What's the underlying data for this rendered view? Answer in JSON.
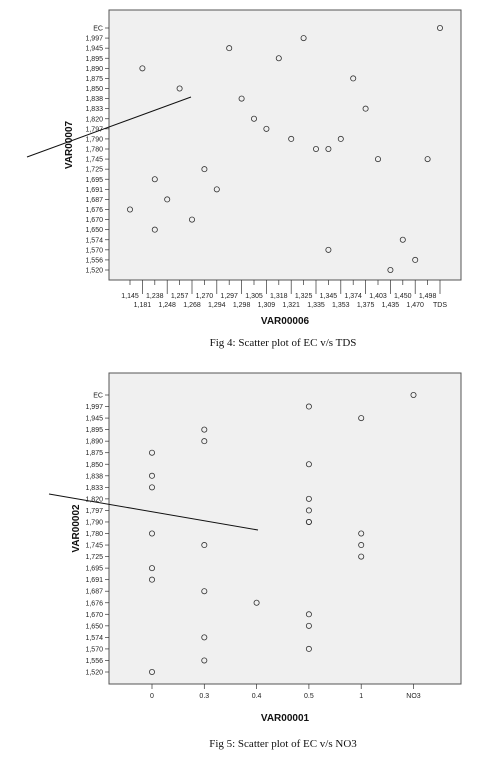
{
  "chart_data": [
    {
      "type": "scatter",
      "title": "",
      "caption": "Fig 4: Scatter plot of EC v/s TDS",
      "xlabel": "VAR00006",
      "ylabel": "VAR00007",
      "x_categories": [
        "1,145",
        "1,181",
        "1,238",
        "1,248",
        "1,257",
        "1,268",
        "1,270",
        "1,294",
        "1,297",
        "1,298",
        "1,305",
        "1,309",
        "1,318",
        "1,321",
        "1,325",
        "1,335",
        "1,345",
        "1,353",
        "1,374",
        "1,375",
        "1,403",
        "1,435",
        "1,450",
        "1,470",
        "1,498",
        "TDS"
      ],
      "y_categories": [
        "1,520",
        "1,556",
        "1,570",
        "1,574",
        "1,650",
        "1,670",
        "1,676",
        "1,687",
        "1,691",
        "1,695",
        "1,725",
        "1,745",
        "1,780",
        "1,790",
        "1,797",
        "1,820",
        "1,833",
        "1,838",
        "1,850",
        "1,875",
        "1,890",
        "1,895",
        "1,945",
        "1,997",
        "EC"
      ],
      "points": [
        {
          "x": "1,145",
          "y": "1,676"
        },
        {
          "x": "1,181",
          "y": "1,890"
        },
        {
          "x": "1,238",
          "y": "1,695"
        },
        {
          "x": "1,238",
          "y": "1,650"
        },
        {
          "x": "1,248",
          "y": "1,687"
        },
        {
          "x": "1,257",
          "y": "1,850"
        },
        {
          "x": "1,268",
          "y": "1,670"
        },
        {
          "x": "1,270",
          "y": "1,725"
        },
        {
          "x": "1,294",
          "y": "1,691"
        },
        {
          "x": "1,297",
          "y": "1,945"
        },
        {
          "x": "1,298",
          "y": "1,838"
        },
        {
          "x": "1,305",
          "y": "1,820"
        },
        {
          "x": "1,309",
          "y": "1,797"
        },
        {
          "x": "1,318",
          "y": "1,895"
        },
        {
          "x": "1,321",
          "y": "1,790"
        },
        {
          "x": "1,325",
          "y": "1,997"
        },
        {
          "x": "1,335",
          "y": "1,780"
        },
        {
          "x": "1,345",
          "y": "1,780"
        },
        {
          "x": "1,345",
          "y": "1,570"
        },
        {
          "x": "1,353",
          "y": "1,790"
        },
        {
          "x": "1,374",
          "y": "1,875"
        },
        {
          "x": "1,375",
          "y": "1,833"
        },
        {
          "x": "1,403",
          "y": "1,745"
        },
        {
          "x": "1,435",
          "y": "1,520"
        },
        {
          "x": "1,450",
          "y": "1,574"
        },
        {
          "x": "1,470",
          "y": "1,556"
        },
        {
          "x": "1,498",
          "y": "1,745"
        },
        {
          "x": "TDS",
          "y": "EC"
        }
      ],
      "grid": false,
      "background": "#f0f0f0"
    },
    {
      "type": "scatter",
      "title": "",
      "caption": "Fig 5: Scatter plot of EC v/s NO3",
      "xlabel": "VAR00001",
      "ylabel": "VAR00002",
      "x_categories": [
        "0",
        "0.3",
        "0.4",
        "0.5",
        "1",
        "NO3"
      ],
      "y_categories": [
        "1,520",
        "1,556",
        "1,570",
        "1,574",
        "1,650",
        "1,670",
        "1,676",
        "1,687",
        "1,691",
        "1,695",
        "1,725",
        "1,745",
        "1,780",
        "1,790",
        "1,797",
        "1,820",
        "1,833",
        "1,838",
        "1,850",
        "1,875",
        "1,890",
        "1,895",
        "1,945",
        "1,997",
        "EC"
      ],
      "points": [
        {
          "x": "0",
          "y": "1,875"
        },
        {
          "x": "0",
          "y": "1,838"
        },
        {
          "x": "0",
          "y": "1,833"
        },
        {
          "x": "0",
          "y": "1,780"
        },
        {
          "x": "0",
          "y": "1,695"
        },
        {
          "x": "0",
          "y": "1,691"
        },
        {
          "x": "0",
          "y": "1,520"
        },
        {
          "x": "0.3",
          "y": "1,895"
        },
        {
          "x": "0.3",
          "y": "1,890"
        },
        {
          "x": "0.3",
          "y": "1,745"
        },
        {
          "x": "0.3",
          "y": "1,687"
        },
        {
          "x": "0.3",
          "y": "1,574"
        },
        {
          "x": "0.3",
          "y": "1,556"
        },
        {
          "x": "0.4",
          "y": "1,676"
        },
        {
          "x": "0.5",
          "y": "1,997"
        },
        {
          "x": "0.5",
          "y": "1,850"
        },
        {
          "x": "0.5",
          "y": "1,820"
        },
        {
          "x": "0.5",
          "y": "1,797"
        },
        {
          "x": "0.5",
          "y": "1,790"
        },
        {
          "x": "0.5",
          "y": "1,790"
        },
        {
          "x": "0.5",
          "y": "1,670"
        },
        {
          "x": "0.5",
          "y": "1,650"
        },
        {
          "x": "0.5",
          "y": "1,570"
        },
        {
          "x": "1",
          "y": "1,945"
        },
        {
          "x": "1",
          "y": "1,780"
        },
        {
          "x": "1",
          "y": "1,745"
        },
        {
          "x": "1",
          "y": "1,725"
        },
        {
          "x": "NO3",
          "y": "EC"
        }
      ],
      "grid": false,
      "background": "#f0f0f0"
    }
  ]
}
